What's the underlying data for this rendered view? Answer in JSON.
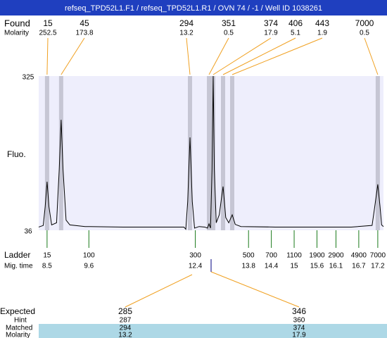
{
  "header": {
    "title": "refseq_TPD52L1.F1 / refseq_TPD52L1.R1 / OVN 74 / -1 / Well ID 1038261"
  },
  "found": {
    "label": "Found",
    "molarity_label": "Molarity",
    "sizes": [
      15,
      45,
      294,
      351,
      374,
      406,
      443,
      7000
    ],
    "molarity": [
      252.5,
      173.8,
      13.2,
      0.5,
      17.9,
      5.1,
      1.9,
      0.5
    ],
    "times": [
      8.5,
      8.87,
      12.26,
      12.76,
      12.87,
      13.13,
      13.37,
      17.2
    ]
  },
  "chart_data": {
    "type": "line",
    "ylabel": "Fluo.",
    "x": [
      8.28,
      8.4,
      8.45,
      8.5,
      8.55,
      8.62,
      8.75,
      8.82,
      8.87,
      8.92,
      9.0,
      9.1,
      9.5,
      10.5,
      11.5,
      12.1,
      12.15,
      12.2,
      12.26,
      12.32,
      12.38,
      12.5,
      12.65,
      12.72,
      12.76,
      12.8,
      12.84,
      12.87,
      12.9,
      12.95,
      13.03,
      13.13,
      13.2,
      13.28,
      13.37,
      13.45,
      13.6,
      14.5,
      15.5,
      16.5,
      17.05,
      17.12,
      17.2,
      17.26,
      17.3,
      17.35
    ],
    "series": [
      {
        "color": "#000000",
        "values": [
          42,
          45,
          80,
          127,
          80,
          46,
          50,
          150,
          243,
          150,
          55,
          46,
          43,
          42,
          42,
          42,
          38,
          90,
          210,
          90,
          40,
          43,
          42,
          40,
          48,
          40,
          150,
          325,
          150,
          50,
          65,
          118,
          60,
          50,
          65,
          47,
          43,
          42,
          42,
          42,
          45,
          80,
          122,
          80,
          46,
          43
        ]
      }
    ],
    "xlim": [
      8.28,
      17.35
    ],
    "ylim": [
      36,
      325
    ],
    "yticks": [
      36,
      325
    ]
  },
  "ladder": {
    "label": "Ladder",
    "time_label": "Mig. time",
    "sizes": [
      15,
      100,
      300,
      500,
      700,
      1100,
      1900,
      2900,
      4900,
      7000
    ],
    "times": [
      8.5,
      9.6,
      12.4,
      13.8,
      14.4,
      15,
      15.6,
      16.1,
      16.7,
      17.2
    ]
  },
  "expected": {
    "label": "Expected",
    "hint_label": "Hint",
    "matched_label": "Matched",
    "molarity_label": "Molarity",
    "expected": [
      285,
      346
    ],
    "hint": [
      287,
      360
    ],
    "matched": [
      294,
      374
    ],
    "molarity": [
      13.2,
      17.9
    ]
  }
}
